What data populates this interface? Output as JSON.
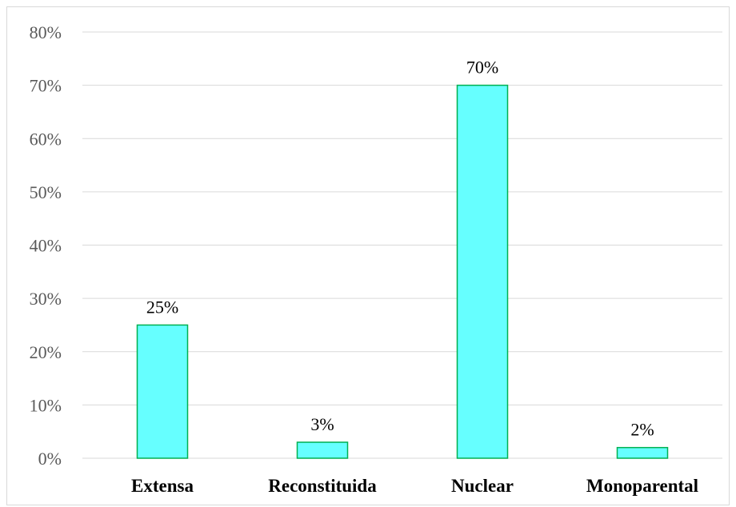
{
  "chart_data": {
    "type": "bar",
    "categories": [
      "Extensa",
      "Reconstituida",
      "Nuclear",
      "Monoparental"
    ],
    "values": [
      25,
      3,
      70,
      2
    ],
    "data_labels": [
      "25%",
      "3%",
      "70%",
      "2%"
    ],
    "title": "",
    "xlabel": "",
    "ylabel": "",
    "ylim": [
      0,
      80
    ],
    "yticks": [
      0,
      10,
      20,
      30,
      40,
      50,
      60,
      70,
      80
    ],
    "ytick_labels": [
      "0%",
      "10%",
      "20%",
      "30%",
      "40%",
      "50%",
      "60%",
      "70%",
      "80%"
    ],
    "grid": true,
    "legend": "none"
  },
  "colors": {
    "bar_fill": "#66ffff",
    "bar_stroke": "#00b050",
    "grid": "#d9d9d9",
    "axis": "#d9d9d9"
  }
}
